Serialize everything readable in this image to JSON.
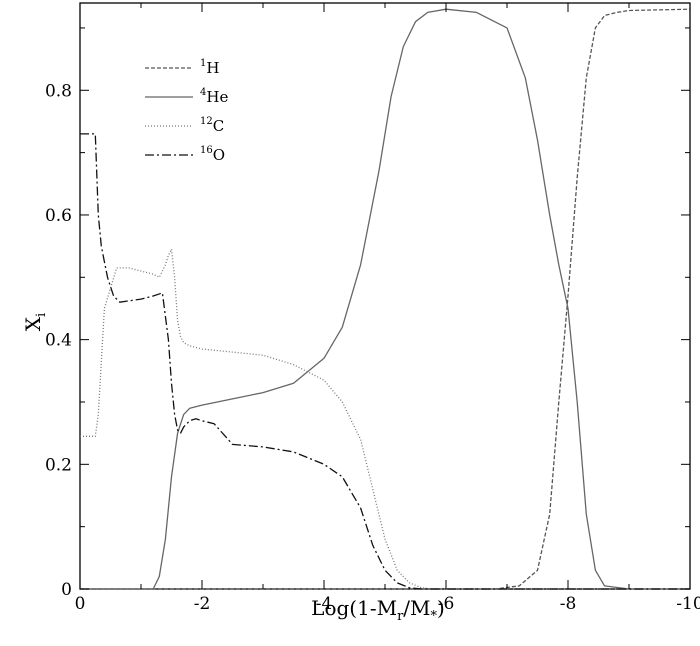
{
  "chart_data": {
    "type": "line",
    "title": "",
    "xlabel": {
      "main": "Log(1-M",
      "sub1": "r",
      "mid": "/M",
      "sub2": "*",
      "end": ")"
    },
    "ylabel": {
      "main": "X",
      "sub": "i"
    },
    "xlim": [
      0,
      -10
    ],
    "ylim": [
      0,
      0.94
    ],
    "xticks": [
      0,
      -2,
      -4,
      -6,
      -8,
      -10
    ],
    "xtick_labels": [
      "0",
      "-2",
      "-4",
      "-6",
      "-8",
      "-10"
    ],
    "yticks": [
      0,
      0.2,
      0.4,
      0.6,
      0.8
    ],
    "ytick_labels": [
      "0",
      "0.2",
      "0.4",
      "0.6",
      "0.8"
    ],
    "grid": false,
    "legend_position": "top-left",
    "series": [
      {
        "name": "1H",
        "sup": "1",
        "base": "H",
        "dash": "4,2",
        "color": "#555555",
        "x": [
          0,
          -6.8,
          -7.2,
          -7.5,
          -7.7,
          -7.85,
          -8.0,
          -8.15,
          -8.3,
          -8.45,
          -8.6,
          -8.8,
          -9.0,
          -10
        ],
        "y": [
          0,
          0,
          0.005,
          0.03,
          0.12,
          0.3,
          0.47,
          0.66,
          0.82,
          0.9,
          0.92,
          0.925,
          0.928,
          0.93
        ]
      },
      {
        "name": "4He",
        "sup": "4",
        "base": "He",
        "dash": "",
        "color": "#666666",
        "x": [
          0,
          -1.2,
          -1.3,
          -1.4,
          -1.5,
          -1.6,
          -1.7,
          -1.8,
          -2.0,
          -2.5,
          -3.0,
          -3.5,
          -4.0,
          -4.3,
          -4.6,
          -4.9,
          -5.1,
          -5.3,
          -5.5,
          -5.7,
          -6.0,
          -6.5,
          -7.0,
          -7.3,
          -7.5,
          -7.7,
          -7.85,
          -8.0,
          -8.15,
          -8.3,
          -8.45,
          -8.6,
          -9.0,
          -10
        ],
        "y": [
          0,
          0,
          0.02,
          0.08,
          0.18,
          0.25,
          0.28,
          0.29,
          0.295,
          0.305,
          0.315,
          0.33,
          0.37,
          0.42,
          0.52,
          0.67,
          0.79,
          0.87,
          0.91,
          0.925,
          0.93,
          0.925,
          0.9,
          0.82,
          0.72,
          0.6,
          0.52,
          0.45,
          0.3,
          0.12,
          0.03,
          0.005,
          0,
          0
        ]
      },
      {
        "name": "12C",
        "sup": "12",
        "base": "C",
        "dash": "1,2",
        "color": "#777777",
        "x": [
          0,
          -0.25,
          -0.3,
          -0.4,
          -0.6,
          -0.8,
          -1.0,
          -1.2,
          -1.3,
          -1.4,
          -1.45,
          -1.5,
          -1.55,
          -1.6,
          -1.65,
          -1.7,
          -1.8,
          -2.0,
          -2.5,
          -3.0,
          -3.5,
          -4.0,
          -4.3,
          -4.6,
          -4.8,
          -5.0,
          -5.2,
          -5.4,
          -5.6,
          -5.8,
          -6.0,
          -10
        ],
        "y": [
          0.245,
          0.245,
          0.28,
          0.45,
          0.515,
          0.515,
          0.51,
          0.505,
          0.5,
          0.52,
          0.535,
          0.545,
          0.5,
          0.43,
          0.405,
          0.395,
          0.39,
          0.385,
          0.38,
          0.375,
          0.36,
          0.335,
          0.3,
          0.24,
          0.16,
          0.08,
          0.03,
          0.01,
          0.002,
          0,
          0,
          0
        ]
      },
      {
        "name": "16O",
        "sup": "16",
        "base": "O",
        "dash": "9,3,2,3",
        "color": "#111111",
        "x": [
          0,
          -0.25,
          -0.3,
          -0.35,
          -0.45,
          -0.55,
          -0.65,
          -1.0,
          -1.2,
          -1.35,
          -1.45,
          -1.5,
          -1.55,
          -1.6,
          -1.65,
          -1.7,
          -1.8,
          -1.9,
          -2.0,
          -2.2,
          -2.5,
          -3.0,
          -3.5,
          -4.0,
          -4.3,
          -4.6,
          -4.8,
          -5.0,
          -5.2,
          -5.4,
          -5.6,
          -5.8,
          -6.0,
          -10
        ],
        "y": [
          0.73,
          0.73,
          0.6,
          0.55,
          0.5,
          0.47,
          0.46,
          0.465,
          0.47,
          0.475,
          0.4,
          0.33,
          0.28,
          0.255,
          0.25,
          0.26,
          0.27,
          0.273,
          0.27,
          0.265,
          0.232,
          0.228,
          0.22,
          0.2,
          0.18,
          0.13,
          0.07,
          0.03,
          0.01,
          0.002,
          0,
          0,
          0,
          0
        ]
      }
    ]
  }
}
